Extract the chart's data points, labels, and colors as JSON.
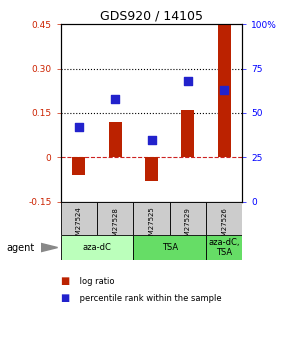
{
  "title": "GDS920 / 14105",
  "samples": [
    "GSM27524",
    "GSM27528",
    "GSM27525",
    "GSM27529",
    "GSM27526"
  ],
  "log_ratios": [
    -0.06,
    0.12,
    -0.08,
    0.16,
    0.46
  ],
  "percentile_ranks": [
    42,
    58,
    35,
    68,
    63
  ],
  "agents": [
    {
      "label": "aza-dC",
      "start": 0,
      "end": 2,
      "color": "#bbffbb"
    },
    {
      "label": "TSA",
      "start": 2,
      "end": 4,
      "color": "#66dd66"
    },
    {
      "label": "aza-dC,\nTSA",
      "start": 4,
      "end": 5,
      "color": "#66dd66"
    }
  ],
  "left_ylim": [
    -0.15,
    0.45
  ],
  "right_ylim": [
    0,
    100
  ],
  "left_yticks": [
    -0.15,
    0.0,
    0.15,
    0.3,
    0.45
  ],
  "left_yticklabels": [
    "-0.15",
    "0",
    "0.15",
    "0.30",
    "0.45"
  ],
  "right_yticks": [
    0,
    25,
    50,
    75,
    100
  ],
  "right_yticklabels": [
    "0",
    "25",
    "50",
    "75",
    "100%"
  ],
  "hlines": [
    0.15,
    0.3
  ],
  "hline_zero": 0.0,
  "bar_color": "#bb2200",
  "dot_color": "#2222cc",
  "bar_width": 0.35,
  "dot_size": 40,
  "legend_items": [
    {
      "color": "#bb2200",
      "label": " log ratio"
    },
    {
      "color": "#2222cc",
      "label": " percentile rank within the sample"
    }
  ],
  "agent_label": "agent",
  "sample_box_color": "#cccccc",
  "fig_width": 3.03,
  "fig_height": 3.45,
  "dpi": 100
}
